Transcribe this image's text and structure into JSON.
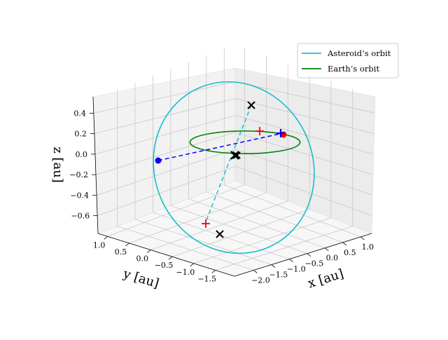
{
  "chart_data": {
    "type": "line3d",
    "projection": "3d",
    "view": {
      "elev": 18,
      "azim": -140
    },
    "xlabel": "x [au]",
    "ylabel": "y [au]",
    "zlabel": "z [au]",
    "xlim": [
      -2.2,
      1.2
    ],
    "ylim": [
      -1.8,
      1.2
    ],
    "zlim": [
      -0.7,
      0.5
    ],
    "xticks": [
      "−2.0",
      "−1.5",
      "−1.0",
      "−0.5",
      "0.0",
      "0.5",
      "1.0"
    ],
    "yticks": [
      "1.0",
      "0.5",
      "0.0",
      "−0.5",
      "−1.0",
      "−1.5"
    ],
    "zticks": [
      "0.4",
      "0.2",
      "0.0",
      "−0.2",
      "−0.4",
      "−0.6"
    ],
    "grid": true,
    "legend_position": "upper right",
    "legend": [
      {
        "label": "Asteroid’s orbit",
        "color": "#17becf"
      },
      {
        "label": "Earth’s orbit",
        "color": "#008000"
      }
    ],
    "series": [
      {
        "name": "Asteroid’s orbit",
        "kind": "ellipse",
        "color": "#17becf"
      },
      {
        "name": "Earth’s orbit",
        "kind": "circle",
        "radius_au": 1.0,
        "color": "#008000"
      }
    ],
    "markers": [
      {
        "kind": "cross",
        "color": "#000000"
      },
      {
        "kind": "cross",
        "color": "#000000"
      },
      {
        "kind": "cross",
        "color": "#000000"
      },
      {
        "kind": "plus",
        "color": "#ff0000"
      },
      {
        "kind": "plus",
        "color": "#ff0000"
      },
      {
        "kind": "plus",
        "color": "#0000ff"
      },
      {
        "kind": "dot",
        "color": "#0000ff"
      },
      {
        "kind": "dot",
        "color": "#ff0000"
      }
    ],
    "guide_lines": [
      {
        "style": "dashed",
        "color": "#0000ff"
      },
      {
        "style": "dashed",
        "color": "#17becf"
      }
    ]
  }
}
